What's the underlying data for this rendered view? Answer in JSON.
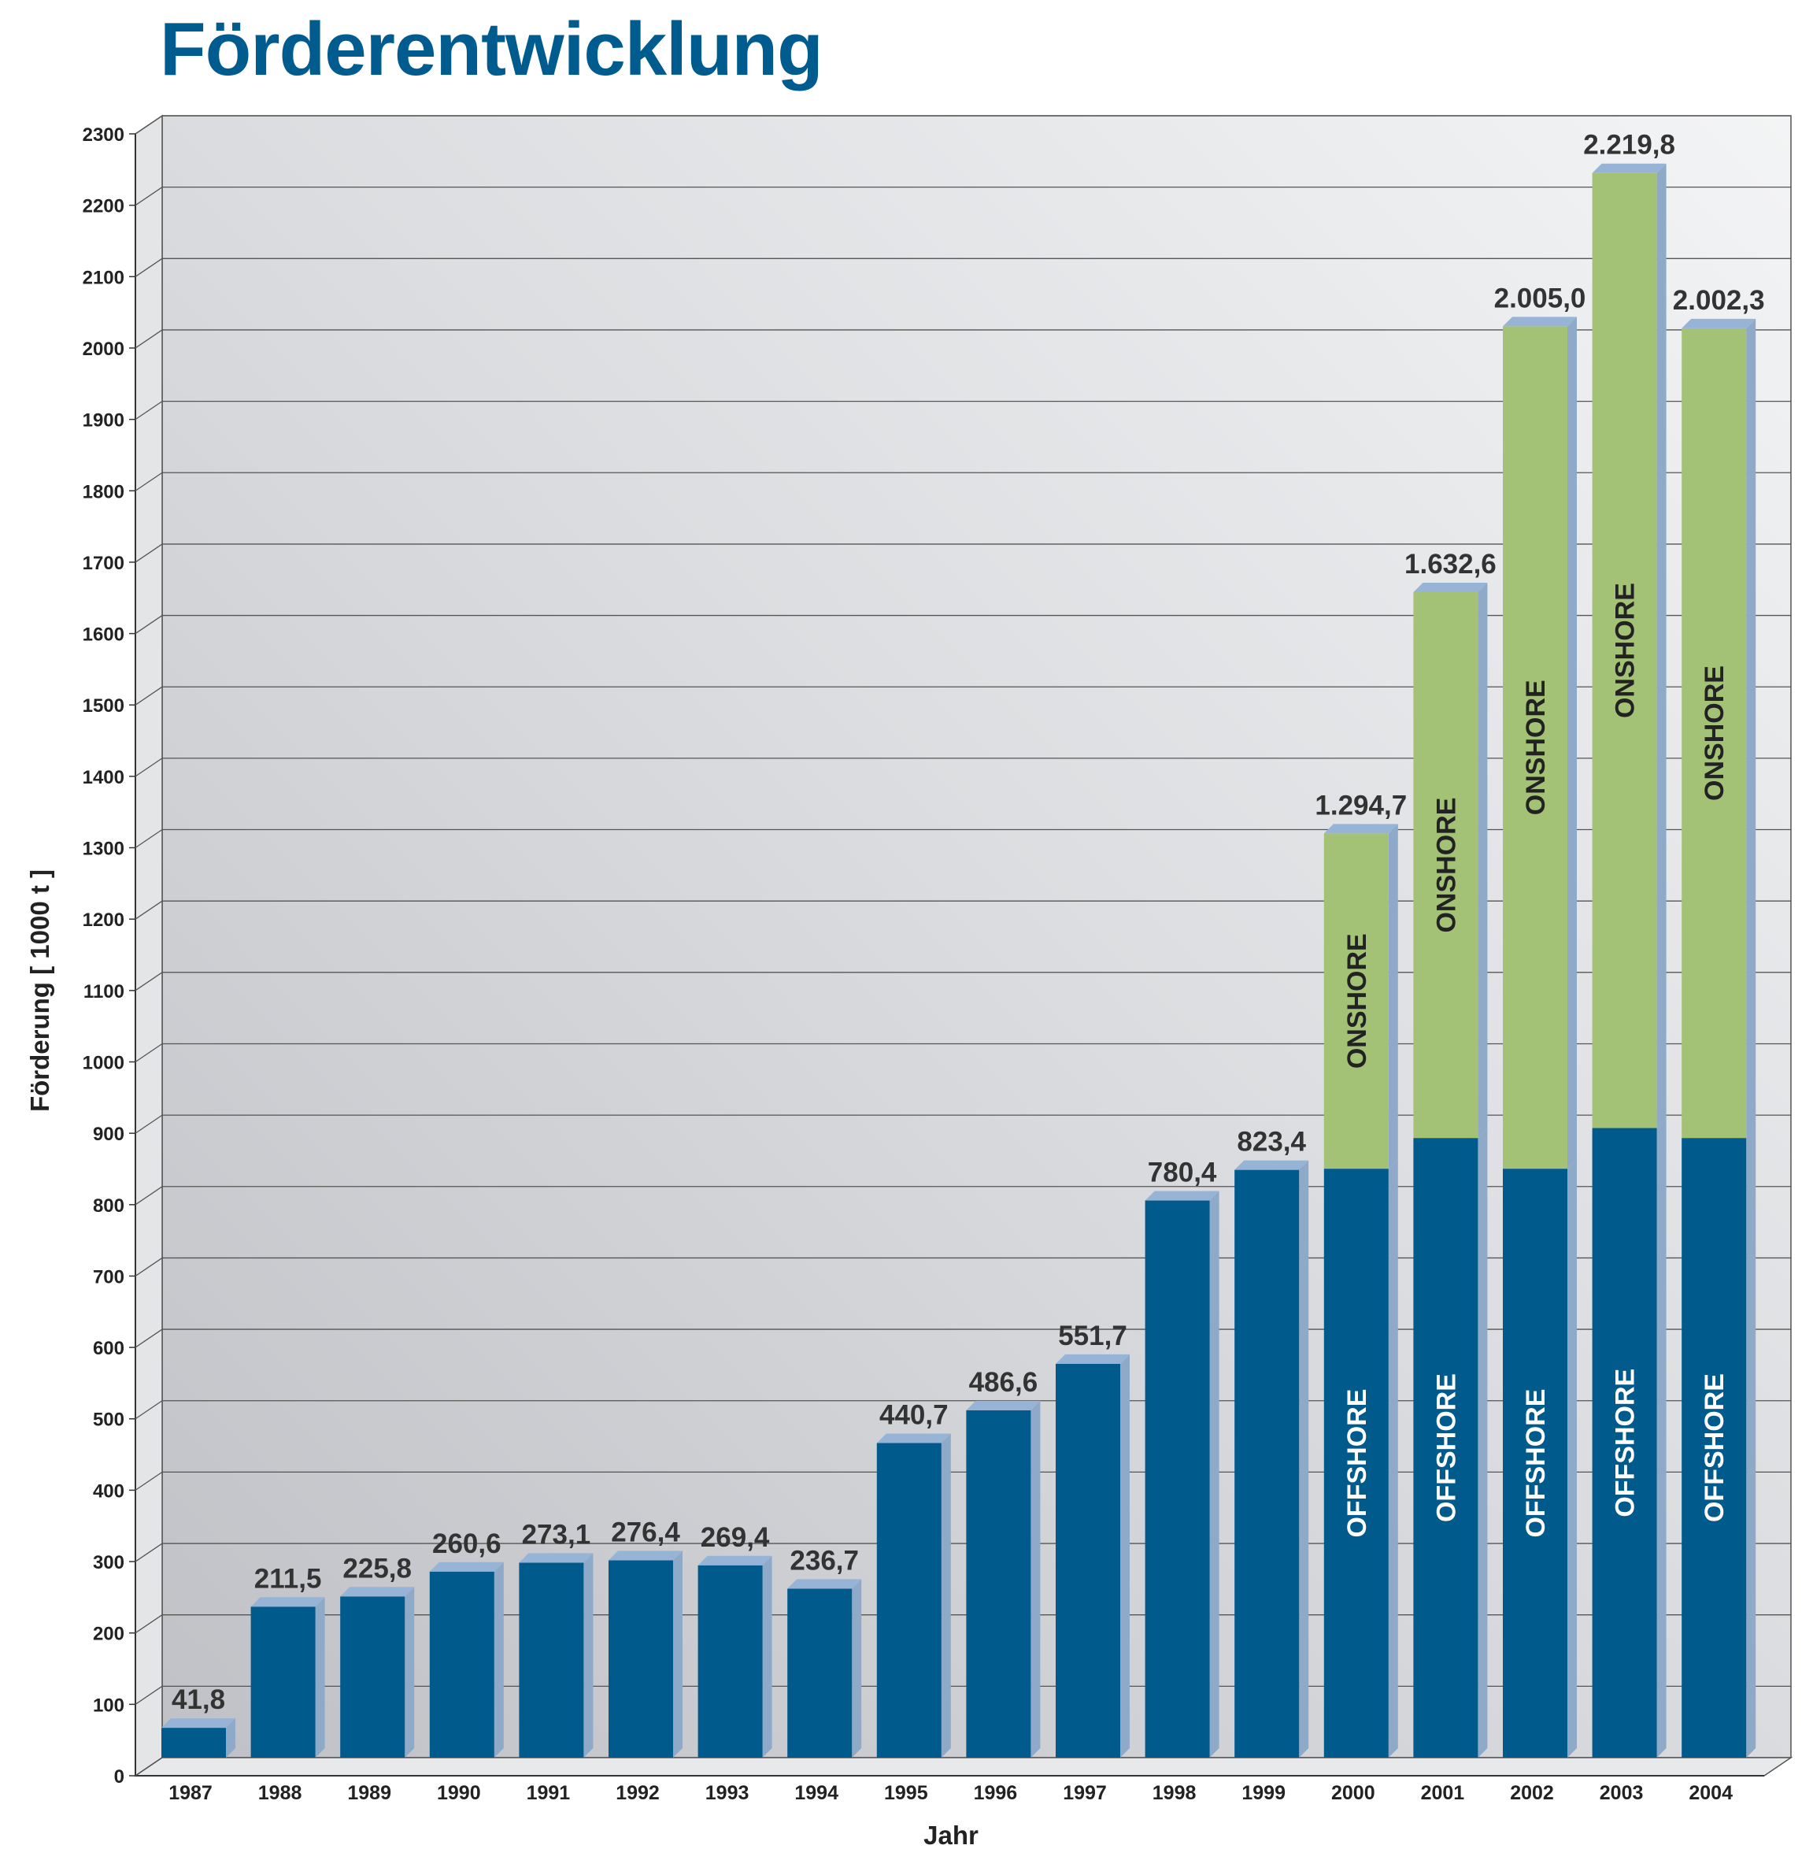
{
  "title": "Förderentwicklung",
  "chart_data": {
    "type": "bar",
    "stacked": true,
    "title": "Förderentwicklung",
    "xlabel": "Jahr",
    "ylabel": "Förderung [ 1000 t ]",
    "ylim": [
      0,
      2300
    ],
    "ytick_step": 100,
    "grid": true,
    "categories": [
      "1987",
      "1988",
      "1989",
      "1990",
      "1991",
      "1992",
      "1993",
      "1994",
      "1995",
      "1996",
      "1997",
      "1998",
      "1999",
      "2000",
      "2001",
      "2002",
      "2003",
      "2004"
    ],
    "totals": [
      41.8,
      211.5,
      225.8,
      260.6,
      273.1,
      276.4,
      269.4,
      236.7,
      440.7,
      486.6,
      551.7,
      780.4,
      823.4,
      1294.7,
      1632.6,
      2005.0,
      2219.8,
      2002.3
    ],
    "total_labels": [
      "41,8",
      "211,5",
      "225,8",
      "260,6",
      "273,1",
      "276,4",
      "269,4",
      "236,7",
      "440,7",
      "486,6",
      "551,7",
      "780,4",
      "823,4",
      "1.294,7",
      "1.632,6",
      "2.005,0",
      "2.219,8",
      "2.002,3"
    ],
    "series": [
      {
        "name": "OFFSHORE",
        "color": "#005a8c",
        "values": [
          41.8,
          211.5,
          225.8,
          260.6,
          273.1,
          276.4,
          269.4,
          236.7,
          440.7,
          486.6,
          551.7,
          780.4,
          823.4,
          825,
          868,
          825,
          882,
          868
        ]
      },
      {
        "name": "ONSHORE",
        "color": "#a4c276",
        "values": [
          0,
          0,
          0,
          0,
          0,
          0,
          0,
          0,
          0,
          0,
          0,
          0,
          0,
          469.7,
          764.6,
          1180.0,
          1337.8,
          1134.3
        ]
      }
    ],
    "segment_text_colors": {
      "OFFSHORE": "#ffffff",
      "ONSHORE": "#222222"
    },
    "segment_labels_shown_from": "2000"
  }
}
